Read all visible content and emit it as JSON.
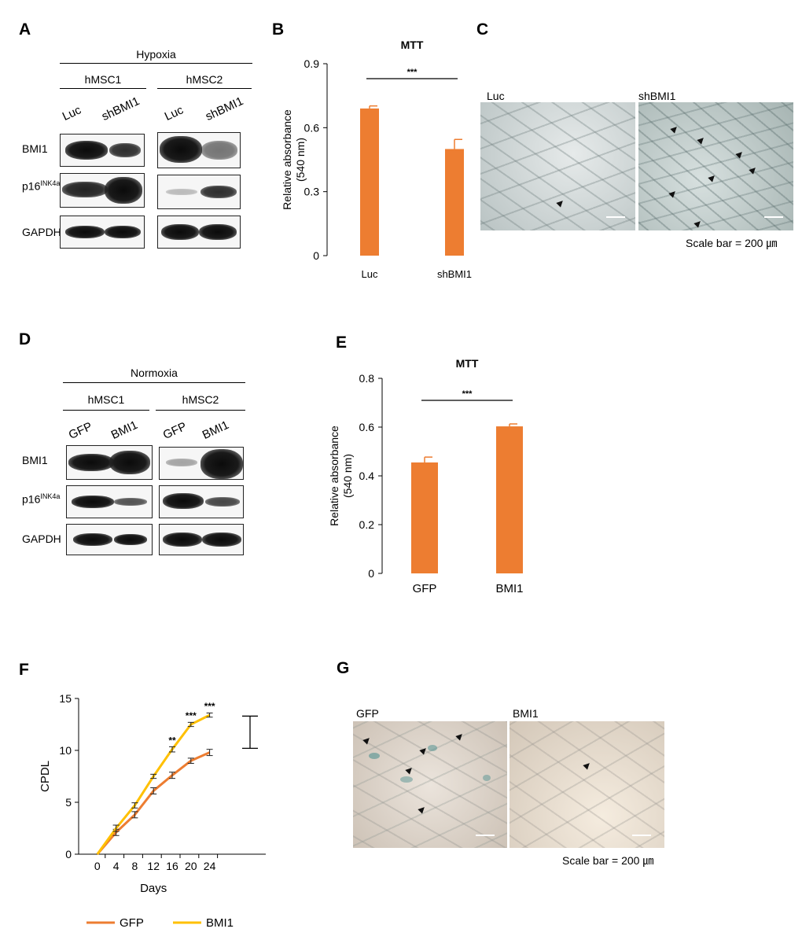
{
  "panels": {
    "A": {
      "label": "A",
      "condition": "Hypoxia",
      "groups": [
        "hMSC1",
        "hMSC2"
      ],
      "lanes": [
        "Luc",
        "shBMI1",
        "Luc",
        "shBMI1"
      ],
      "rows": [
        {
          "name": "BMI1",
          "sup": ""
        },
        {
          "name": "p16",
          "sup": "INK4a"
        },
        {
          "name": "GAPDH",
          "sup": ""
        }
      ]
    },
    "B": {
      "label": "B"
    },
    "C": {
      "label": "C",
      "left_label": "Luc",
      "right_label": "shBMI1",
      "scale": "Scale bar = 200 ㎛"
    },
    "D": {
      "label": "D",
      "condition": "Normoxia",
      "groups": [
        "hMSC1",
        "hMSC2"
      ],
      "lanes": [
        "GFP",
        "BMI1",
        "GFP",
        "BMI1"
      ],
      "rows": [
        {
          "name": "BMI1",
          "sup": ""
        },
        {
          "name": "p16",
          "sup": "INK4a"
        },
        {
          "name": "GAPDH",
          "sup": ""
        }
      ]
    },
    "E": {
      "label": "E"
    },
    "F": {
      "label": "F"
    },
    "G": {
      "label": "G",
      "left_label": "GFP",
      "right_label": "BMI1",
      "scale": "Scale bar = 200 ㎛"
    }
  },
  "chart_data": [
    {
      "id": "B",
      "type": "bar",
      "title": "MTT",
      "ylabel": "Relative absorbance\n(540 nm)",
      "categories": [
        "Luc",
        "shBMI1"
      ],
      "values": [
        0.69,
        0.5
      ],
      "errors": [
        0.012,
        0.045
      ],
      "ylim": [
        0,
        0.9
      ],
      "yticks": [
        "0",
        "0.3",
        "0.6",
        "0.9"
      ],
      "significance": "***",
      "color": "#ED7D31"
    },
    {
      "id": "E",
      "type": "bar",
      "title": "MTT",
      "ylabel": "Relative absorbance\n(540 nm)",
      "categories": [
        "GFP",
        "BMI1"
      ],
      "values": [
        0.455,
        0.603
      ],
      "errors": [
        0.022,
        0.01
      ],
      "ylim": [
        0,
        0.8
      ],
      "yticks": [
        "0",
        "0.2",
        "0.4",
        "0.6",
        "0.8"
      ],
      "significance": "***",
      "color": "#ED7D31"
    },
    {
      "id": "F",
      "type": "line",
      "xlabel": "Days",
      "ylabel": "CPDL",
      "x": [
        0,
        4,
        8,
        12,
        16,
        20,
        24
      ],
      "xticks": [
        "0",
        "4",
        "8",
        "12",
        "16",
        "20",
        "24"
      ],
      "ylim": [
        0,
        15
      ],
      "yticks": [
        "0",
        "5",
        "10",
        "15"
      ],
      "series": [
        {
          "name": "GFP",
          "color": "#ED7D31",
          "values": [
            0,
            2.1,
            3.8,
            6.1,
            7.6,
            9.0,
            9.8
          ],
          "errors": [
            0.15,
            0.3,
            0.3,
            0.3,
            0.3,
            0.25,
            0.3
          ]
        },
        {
          "name": "BMI1",
          "color": "#FFC000",
          "values": [
            0,
            2.5,
            4.7,
            7.5,
            10.1,
            12.5,
            13.4
          ],
          "errors": [
            0.15,
            0.3,
            0.25,
            0.2,
            0.25,
            0.2,
            0.2
          ]
        }
      ],
      "annotations": [
        {
          "x": 16,
          "y": 10.1,
          "text": "**"
        },
        {
          "x": 20,
          "y": 12.5,
          "text": "***"
        },
        {
          "x": 24,
          "y": 13.4,
          "text": "***"
        }
      ],
      "bracket": [
        10.2,
        13.3
      ]
    }
  ]
}
